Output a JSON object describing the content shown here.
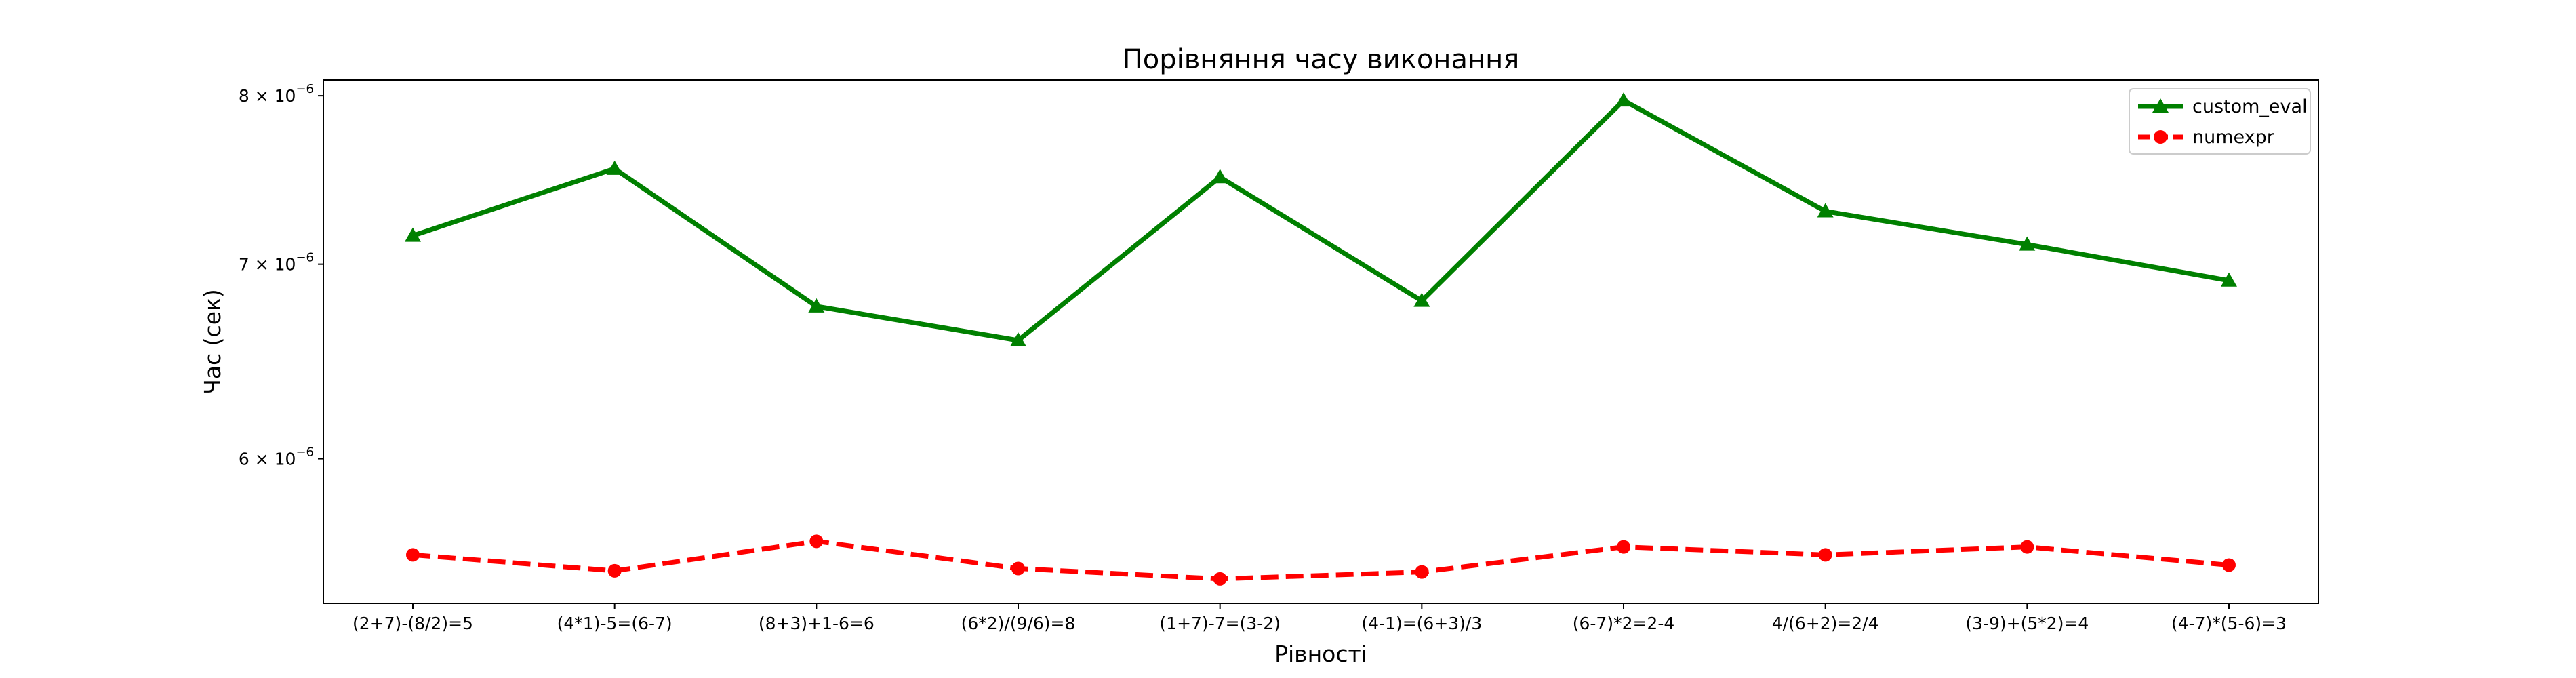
{
  "chart_data": {
    "type": "line",
    "title": "Порівняння часу виконання",
    "xlabel": "Рівності",
    "ylabel": "Час (сек)",
    "y_scale": "log",
    "ylim": [
      5.35e-06,
      8.1e-06
    ],
    "y_ticks": [
      {
        "value": 8e-06,
        "mantissa": "8",
        "exponent": "−6"
      },
      {
        "value": 7e-06,
        "mantissa": "7",
        "exponent": "−6"
      },
      {
        "value": 6e-06,
        "mantissa": "6",
        "exponent": "−6"
      }
    ],
    "tick_base_text": "× 10",
    "categories": [
      "(2+7)-(8/2)=5",
      "(4*1)-5=(6-7)",
      "(8+3)+1-6=6",
      "(6*2)/(9/6)=8",
      "(1+7)-7=(3-2)",
      "(4-1)=(6+3)/3",
      "(6-7)*2=2-4",
      "4/(6+2)=2/4",
      "(3-9)+(5*2)=4",
      "(4-7)*(5-6)=3"
    ],
    "series": [
      {
        "name": "custom_eval",
        "color": "#008000",
        "line_style": "solid",
        "marker": "triangle",
        "values": [
          7.16e-06,
          7.55e-06,
          6.77e-06,
          6.59e-06,
          7.5e-06,
          6.8e-06,
          7.97e-06,
          7.3e-06,
          7.11e-06,
          6.91e-06
        ]
      },
      {
        "name": "numexpr",
        "color": "#ff0000",
        "line_style": "dashed",
        "marker": "circle",
        "values": [
          5.56e-06,
          5.49e-06,
          5.62e-06,
          5.5e-06,
          5.455e-06,
          5.485e-06,
          5.595e-06,
          5.56e-06,
          5.595e-06,
          5.515e-06
        ]
      }
    ],
    "legend_position": "top-right",
    "grid": false
  }
}
